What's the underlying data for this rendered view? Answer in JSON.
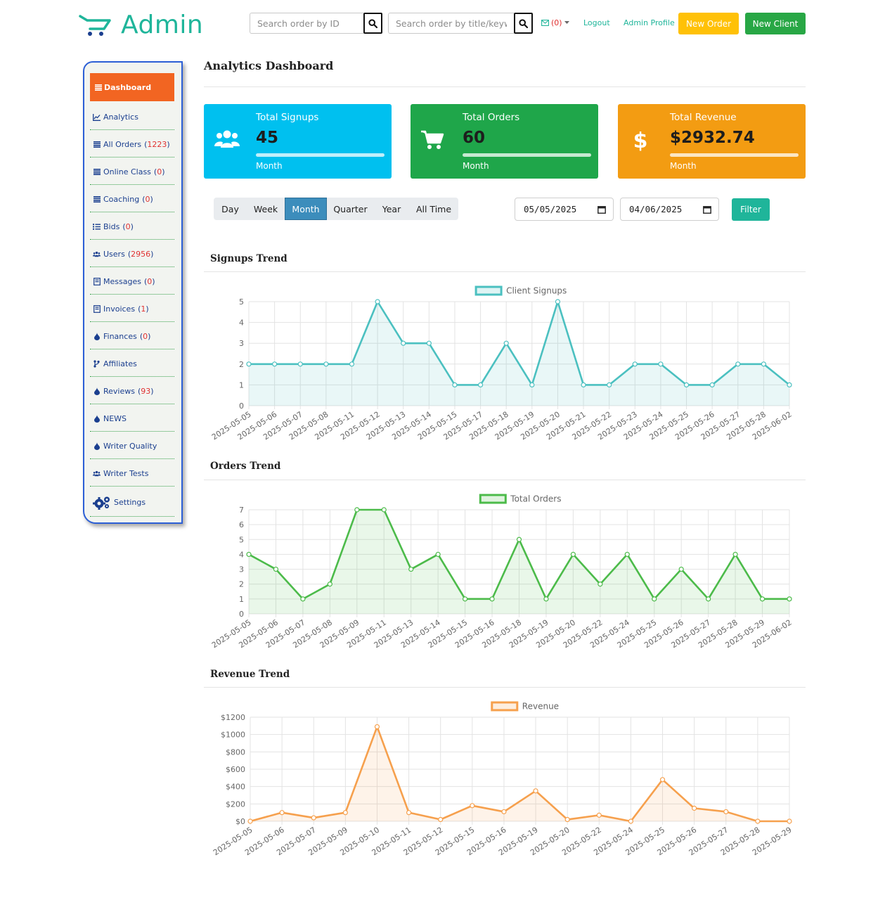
{
  "header": {
    "brand": "Admin",
    "search_id_placeholder": "Search order by ID",
    "search_title_placeholder": "Search order by title/keyword",
    "mail_count": "(0)",
    "logout": "Logout",
    "admin_profile": "Admin Profile",
    "new_order": "New Order",
    "new_client": "New Client"
  },
  "sidebar": {
    "active": {
      "label": "Dashboard",
      "icon": "list-icon"
    },
    "items": [
      {
        "label": "Analytics",
        "count": "",
        "icon": "chart-icon"
      },
      {
        "label": "All Orders",
        "count": "1223",
        "icon": "list-icon"
      },
      {
        "label": "Online Class",
        "count": "0",
        "icon": "list-icon"
      },
      {
        "label": "Coaching",
        "count": "0",
        "icon": "list-icon"
      },
      {
        "label": "Bids",
        "count": "0",
        "icon": "tasks-icon"
      },
      {
        "label": "Users",
        "count": "2956",
        "icon": "users-icon"
      },
      {
        "label": "Messages",
        "count": "0",
        "icon": "book-icon"
      },
      {
        "label": "Invoices",
        "count": "1",
        "icon": "book-icon"
      },
      {
        "label": "Finances",
        "count": "0",
        "icon": "drop-icon"
      },
      {
        "label": "Affiliates",
        "count": "",
        "icon": "branch-icon"
      },
      {
        "label": "Reviews",
        "count": "93",
        "icon": "drop-icon"
      },
      {
        "label": "NEWS",
        "count": "",
        "icon": "drop-icon"
      },
      {
        "label": "Writer Quality",
        "count": "",
        "icon": "drop-icon"
      },
      {
        "label": "Writer Tests",
        "count": "",
        "icon": "users-icon"
      },
      {
        "label": "Settings",
        "count": "",
        "icon": "gears-icon"
      }
    ]
  },
  "main": {
    "title": "Analytics Dashboard",
    "cards": [
      {
        "label": "Total Signups",
        "value": "45",
        "sub": "Month",
        "color": "#00c0ef",
        "icon": "users-icon"
      },
      {
        "label": "Total Orders",
        "value": "60",
        "sub": "Month",
        "color": "#1fa64a",
        "icon": "cart-icon"
      },
      {
        "label": "Total Revenue",
        "value": "$2932.74",
        "sub": "Month",
        "color": "#f39c12",
        "icon": "dollar-icon"
      }
    ],
    "ranges": [
      "Day",
      "Week",
      "Month",
      "Quarter",
      "Year",
      "All Time"
    ],
    "active_range": "Month",
    "date_from": "05/05/2025",
    "date_to": "04/06/2025",
    "filter": "Filter",
    "sections": [
      "Signups Trend",
      "Orders Trend",
      "Revenue Trend"
    ]
  },
  "chart_data": [
    {
      "type": "area",
      "title": "",
      "series": [
        {
          "name": "Client Signups",
          "values": [
            2,
            2,
            2,
            2,
            2,
            5,
            3,
            3,
            1,
            1,
            3,
            1,
            5,
            1,
            1,
            2,
            2,
            1,
            1,
            2,
            2,
            1
          ]
        }
      ],
      "categories": [
        "2025-05-05",
        "2025-05-06",
        "2025-05-07",
        "2025-05-08",
        "2025-05-11",
        "2025-05-12",
        "2025-05-13",
        "2025-05-14",
        "2025-05-15",
        "2025-05-17",
        "2025-05-18",
        "2025-05-19",
        "2025-05-20",
        "2025-05-21",
        "2025-05-22",
        "2025-05-23",
        "2025-05-24",
        "2025-05-25",
        "2025-05-26",
        "2025-05-27",
        "2025-05-28",
        "2025-06-02"
      ],
      "ylim": [
        0,
        5
      ],
      "yticks": [
        "0",
        "1",
        "2",
        "3",
        "4",
        "5"
      ],
      "color": "#4bc0c0",
      "legend": "top"
    },
    {
      "type": "area",
      "title": "",
      "series": [
        {
          "name": "Total Orders",
          "values": [
            4,
            3,
            1,
            2,
            7,
            7,
            3,
            4,
            1,
            1,
            5,
            1,
            4,
            2,
            4,
            1,
            3,
            1,
            4,
            1,
            1
          ]
        }
      ],
      "categories": [
        "2025-05-05",
        "2025-05-06",
        "2025-05-07",
        "2025-05-08",
        "2025-05-09",
        "2025-05-11",
        "2025-05-13",
        "2025-05-14",
        "2025-05-15",
        "2025-05-16",
        "2025-05-18",
        "2025-05-19",
        "2025-05-20",
        "2025-05-22",
        "2025-05-24",
        "2025-05-25",
        "2025-05-26",
        "2025-05-27",
        "2025-05-28",
        "2025-05-29",
        "2025-06-02"
      ],
      "ylim": [
        0,
        7
      ],
      "yticks": [
        "0",
        "1",
        "2",
        "3",
        "4",
        "5",
        "6",
        "7"
      ],
      "color": "#4cbb4a",
      "legend": "top"
    },
    {
      "type": "area",
      "title": "",
      "series": [
        {
          "name": "Revenue",
          "values": [
            0,
            100,
            40,
            100,
            1090,
            100,
            20,
            180,
            110,
            350,
            20,
            70,
            0,
            480,
            150,
            110,
            0,
            0
          ]
        }
      ],
      "categories": [
        "2025-05-05",
        "2025-05-06",
        "2025-05-07",
        "2025-05-09",
        "2025-05-10",
        "2025-05-11",
        "2025-05-12",
        "2025-05-15",
        "2025-05-16",
        "2025-05-19",
        "2025-05-20",
        "2025-05-22",
        "2025-05-24",
        "2025-05-25",
        "2025-05-26",
        "2025-05-27",
        "2025-05-28",
        "2025-05-29"
      ],
      "ylim": [
        0,
        1200
      ],
      "yticks": [
        "$0",
        "$200",
        "$400",
        "$600",
        "$800",
        "$1000",
        "$1200"
      ],
      "color": "#f6a04d",
      "legend": "top"
    }
  ]
}
